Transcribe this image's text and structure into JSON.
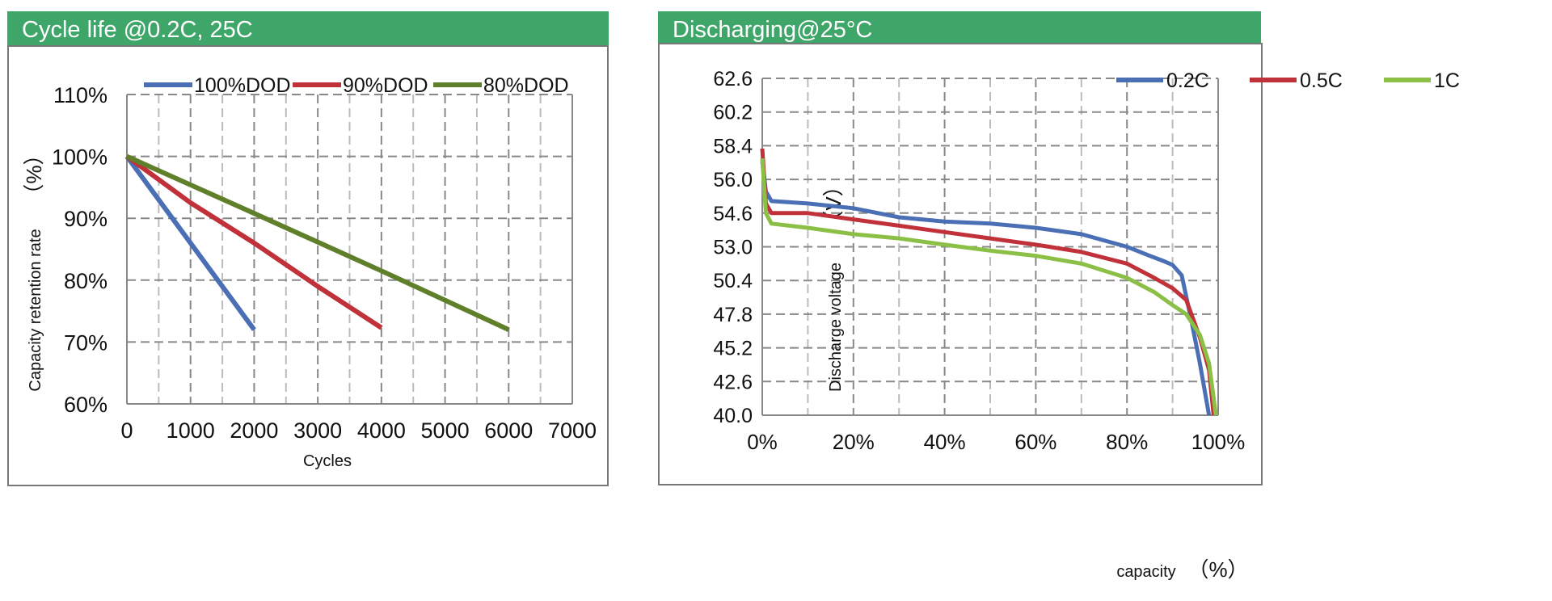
{
  "charts": [
    {
      "header": "Cycle life @0.2C, 25C"
    },
    {
      "header": "Discharging@25°C"
    }
  ],
  "chart_data": [
    {
      "type": "line",
      "title": "Cycle life @0.2C, 25C",
      "xlabel": "Cycles",
      "ylabel": "Capacity retention rate",
      "ylabel_unit": "（%）",
      "xlim": [
        0,
        7000
      ],
      "ylim": [
        60,
        110
      ],
      "x_ticks": [
        0,
        1000,
        2000,
        3000,
        4000,
        5000,
        6000,
        7000
      ],
      "x_tick_labels": [
        "0",
        "1000",
        "2000",
        "3000",
        "4000",
        "5000",
        "6000",
        "7000"
      ],
      "y_ticks": [
        60,
        70,
        80,
        90,
        100,
        110
      ],
      "y_tick_labels": [
        "60%",
        "70%",
        "80%",
        "90%",
        "100%",
        "110%"
      ],
      "grid": true,
      "legend_position": "top",
      "series": [
        {
          "name": "100%DOD",
          "color": "#4a6fb5",
          "points": [
            [
              0,
              100
            ],
            [
              2000,
              72
            ]
          ]
        },
        {
          "name": "90%DOD",
          "color": "#c0313a",
          "points": [
            [
              0,
              100
            ],
            [
              1000,
              92.5
            ],
            [
              2000,
              86
            ],
            [
              3000,
              79
            ],
            [
              4000,
              72.3
            ]
          ]
        },
        {
          "name": "80%DOD",
          "color": "#5f7f2a",
          "points": [
            [
              0,
              100
            ],
            [
              2000,
              90.8
            ],
            [
              4000,
              81.5
            ],
            [
              6000,
              72
            ]
          ]
        }
      ]
    },
    {
      "type": "line",
      "title": "Discharging@25°C",
      "xlabel": "capacity",
      "xlabel_unit": "（%）",
      "ylabel": "Discharge voltage",
      "ylabel_unit": "（V）",
      "xlim": [
        0,
        100
      ],
      "ylim": [
        40.0,
        62.6
      ],
      "x_ticks": [
        0,
        20,
        40,
        60,
        80,
        100
      ],
      "x_tick_labels": [
        "0%",
        "20%",
        "40%",
        "60%",
        "80%",
        "100%"
      ],
      "y_ticks": [
        40.0,
        42.6,
        45.2,
        47.8,
        50.4,
        53.0,
        54.6,
        56.0,
        58.4,
        60.2,
        62.6
      ],
      "y_tick_labels": [
        "40.0",
        "42.6",
        "45.2",
        "47.8",
        "50.4",
        "53.0",
        "54.6",
        "56.0",
        "58.4",
        "60.2",
        "62.6"
      ],
      "grid": true,
      "legend_position": "top-right",
      "series": [
        {
          "name": "0.2C",
          "color": "#4a6fb5",
          "points": [
            [
              0,
              57.3
            ],
            [
              0.8,
              55.5
            ],
            [
              2,
              55.1
            ],
            [
              10,
              55.0
            ],
            [
              20,
              54.8
            ],
            [
              30,
              54.4
            ],
            [
              40,
              54.2
            ],
            [
              50,
              54.1
            ],
            [
              60,
              53.9
            ],
            [
              70,
              53.6
            ],
            [
              80,
              53.0
            ],
            [
              85,
              52.3
            ],
            [
              88,
              51.9
            ],
            [
              90,
              51.6
            ],
            [
              92,
              50.8
            ],
            [
              94,
              47.5
            ],
            [
              96,
              44.0
            ],
            [
              98,
              40.0
            ]
          ]
        },
        {
          "name": "0.5C",
          "color": "#c0313a",
          "points": [
            [
              0,
              58.2
            ],
            [
              0.8,
              55.0
            ],
            [
              2,
              54.6
            ],
            [
              10,
              54.6
            ],
            [
              20,
              54.3
            ],
            [
              30,
              54.0
            ],
            [
              40,
              53.7
            ],
            [
              50,
              53.4
            ],
            [
              60,
              53.1
            ],
            [
              70,
              52.6
            ],
            [
              80,
              51.7
            ],
            [
              86,
              50.6
            ],
            [
              90,
              49.8
            ],
            [
              93,
              48.9
            ],
            [
              96,
              46.0
            ],
            [
              98,
              43.5
            ],
            [
              99,
              40.0
            ]
          ]
        },
        {
          "name": "1C",
          "color": "#8bbf45",
          "points": [
            [
              0,
              57.5
            ],
            [
              0.8,
              54.6
            ],
            [
              2,
              54.1
            ],
            [
              10,
              53.9
            ],
            [
              20,
              53.6
            ],
            [
              30,
              53.4
            ],
            [
              40,
              53.1
            ],
            [
              50,
              52.7
            ],
            [
              60,
              52.3
            ],
            [
              70,
              51.7
            ],
            [
              80,
              50.6
            ],
            [
              86,
              49.5
            ],
            [
              90,
              48.5
            ],
            [
              93,
              47.8
            ],
            [
              96,
              46.2
            ],
            [
              98,
              44.0
            ],
            [
              99.5,
              40.0
            ]
          ]
        }
      ]
    }
  ]
}
